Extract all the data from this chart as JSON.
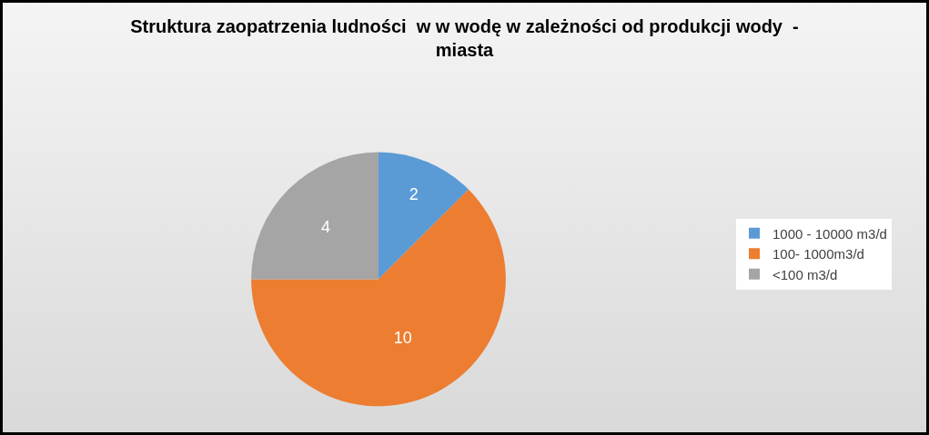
{
  "chart_data": {
    "type": "pie",
    "title": "Struktura zaopatrzenia ludności  w w wodę w zależności od produkcji wody  -\nmiasta",
    "categories": [
      "1000 - 10000 m3/d",
      "100- 1000m3/d",
      "<100 m3/d"
    ],
    "values": [
      2,
      10,
      4
    ],
    "colors": [
      "#5b9bd5",
      "#ed7d31",
      "#a5a5a5"
    ],
    "data_labels": true,
    "legend": "right"
  }
}
